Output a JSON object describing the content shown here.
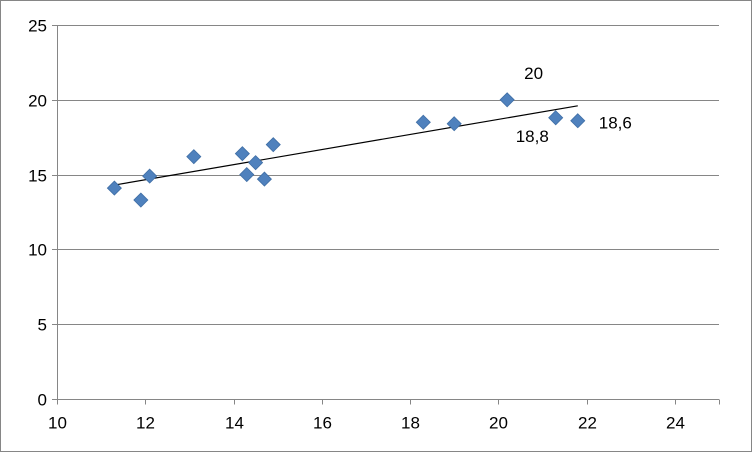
{
  "chart_data": {
    "type": "scatter",
    "title": "",
    "xlabel": "",
    "ylabel": "",
    "xlim": [
      10,
      25
    ],
    "ylim": [
      0,
      25
    ],
    "x_ticks": [
      10,
      12,
      14,
      16,
      18,
      20,
      22,
      24
    ],
    "y_ticks": [
      0,
      5,
      10,
      15,
      20,
      25
    ],
    "x_tick_labels": [
      "10",
      "12",
      "14",
      "16",
      "18",
      "20",
      "22",
      "24"
    ],
    "y_tick_labels": [
      "0",
      "5",
      "10",
      "15",
      "20",
      "25"
    ],
    "grid": {
      "horizontal": true,
      "vertical": false
    },
    "legend": "none",
    "marker_shape": "diamond",
    "marker_color": "#4f81bd",
    "points": [
      {
        "x": 11.3,
        "y": 14.1
      },
      {
        "x": 11.9,
        "y": 13.3
      },
      {
        "x": 12.1,
        "y": 14.9
      },
      {
        "x": 13.1,
        "y": 16.2
      },
      {
        "x": 14.2,
        "y": 16.4
      },
      {
        "x": 14.3,
        "y": 15.0
      },
      {
        "x": 14.5,
        "y": 15.8
      },
      {
        "x": 14.7,
        "y": 14.7
      },
      {
        "x": 14.9,
        "y": 17.0
      },
      {
        "x": 18.3,
        "y": 18.5
      },
      {
        "x": 19.0,
        "y": 18.4
      },
      {
        "x": 20.2,
        "y": 20.0,
        "label": "20"
      },
      {
        "x": 21.3,
        "y": 18.8,
        "label": "18,8"
      },
      {
        "x": 21.8,
        "y": 18.6,
        "label": "18,6"
      }
    ],
    "trendline": {
      "type": "linear",
      "color": "#000000",
      "start": {
        "x": 11.3,
        "y": 14.3
      },
      "end": {
        "x": 21.8,
        "y": 19.6
      }
    }
  }
}
